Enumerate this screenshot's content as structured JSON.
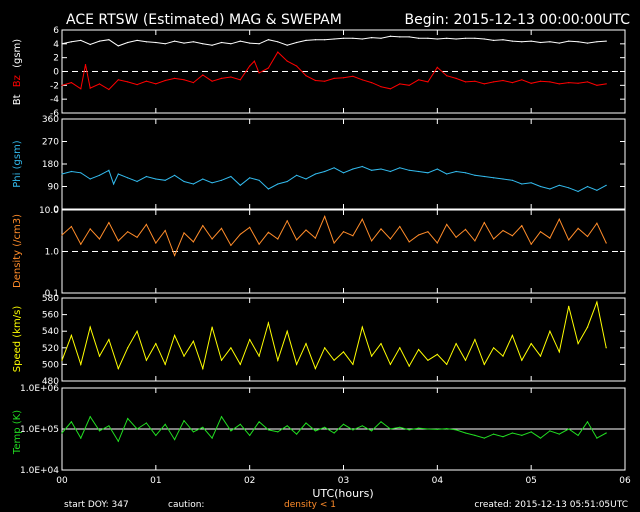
{
  "header": {
    "title": "ACE RTSW (Estimated) MAG & SWEPAM",
    "begin": "Begin: 2015-12-13 00:00:00UTC"
  },
  "footer": {
    "start_doy": "start DOY: 347",
    "caution": "caution:",
    "density_note": "density < 1",
    "created": "created: 2015-12-13 05:51:05UTC"
  },
  "colors": {
    "background": "#000000",
    "axes": "#ffffff",
    "bt": "#ffffff",
    "bz": "#ff0000",
    "phi": "#33bbee",
    "density": "#ff8c2a",
    "speed": "#ffff00",
    "temp": "#22dd22",
    "caution": "#ff8c2a"
  },
  "chart_data": [
    {
      "type": "line",
      "panel": "mag",
      "ylabel_parts": [
        "Bt",
        "Bz",
        "(gsm)"
      ],
      "ylim": [
        -6,
        6
      ],
      "yticks": [
        "6",
        "4",
        "2",
        "0",
        "-2",
        "-4",
        "-6"
      ],
      "ytick_values": [
        6,
        4,
        2,
        0,
        -2,
        -4,
        -6
      ],
      "reference_line": 0,
      "series": [
        {
          "key": "bt",
          "x": [
            0.0,
            0.1,
            0.2,
            0.3,
            0.4,
            0.5,
            0.6,
            0.7,
            0.8,
            0.9,
            1.0,
            1.1,
            1.2,
            1.3,
            1.4,
            1.5,
            1.6,
            1.7,
            1.8,
            1.9,
            2.0,
            2.1,
            2.2,
            2.3,
            2.4,
            2.5,
            2.6,
            2.7,
            2.8,
            2.9,
            3.0,
            3.1,
            3.2,
            3.3,
            3.4,
            3.5,
            3.6,
            3.7,
            3.8,
            3.9,
            4.0,
            4.1,
            4.2,
            4.3,
            4.4,
            4.5,
            4.6,
            4.7,
            4.8,
            4.9,
            5.0,
            5.1,
            5.2,
            5.3,
            5.4,
            5.5,
            5.6,
            5.7,
            5.8
          ],
          "values": [
            4.0,
            4.3,
            4.5,
            3.9,
            4.4,
            4.6,
            3.7,
            4.2,
            4.5,
            4.3,
            4.2,
            4.0,
            4.4,
            4.1,
            4.3,
            4.0,
            3.8,
            4.2,
            4.0,
            4.4,
            4.1,
            4.0,
            4.6,
            4.3,
            3.8,
            4.2,
            4.5,
            4.6,
            4.6,
            4.7,
            4.8,
            4.8,
            4.7,
            4.9,
            4.8,
            5.1,
            5.0,
            5.0,
            4.8,
            4.8,
            4.7,
            4.8,
            4.7,
            4.8,
            4.8,
            4.7,
            4.5,
            4.6,
            4.4,
            4.3,
            4.4,
            4.2,
            4.3,
            4.1,
            4.4,
            4.3,
            4.1,
            4.3,
            4.4
          ]
        },
        {
          "key": "bz",
          "x": [
            0.0,
            0.1,
            0.2,
            0.25,
            0.3,
            0.4,
            0.5,
            0.6,
            0.7,
            0.8,
            0.9,
            1.0,
            1.1,
            1.2,
            1.3,
            1.4,
            1.5,
            1.6,
            1.7,
            1.8,
            1.9,
            2.0,
            2.05,
            2.1,
            2.2,
            2.3,
            2.4,
            2.5,
            2.6,
            2.7,
            2.8,
            2.9,
            3.0,
            3.1,
            3.2,
            3.3,
            3.4,
            3.5,
            3.6,
            3.7,
            3.8,
            3.9,
            4.0,
            4.1,
            4.2,
            4.3,
            4.4,
            4.5,
            4.6,
            4.7,
            4.8,
            4.9,
            5.0,
            5.1,
            5.2,
            5.3,
            5.4,
            5.5,
            5.6,
            5.7,
            5.8
          ],
          "values": [
            -2.0,
            -1.6,
            -2.5,
            1.0,
            -2.4,
            -1.8,
            -2.6,
            -1.2,
            -1.5,
            -1.9,
            -1.4,
            -1.8,
            -1.3,
            -1.0,
            -1.2,
            -1.6,
            -0.5,
            -1.4,
            -1.0,
            -0.8,
            -1.2,
            0.8,
            1.5,
            -0.2,
            0.5,
            2.8,
            1.5,
            0.8,
            -0.6,
            -1.3,
            -1.4,
            -1.0,
            -0.9,
            -0.7,
            -1.2,
            -1.6,
            -2.2,
            -2.5,
            -1.8,
            -2.0,
            -1.2,
            -1.5,
            0.6,
            -0.6,
            -1.0,
            -1.5,
            -1.4,
            -1.8,
            -1.5,
            -1.3,
            -1.6,
            -1.2,
            -1.7,
            -1.4,
            -1.5,
            -1.8,
            -1.6,
            -1.7,
            -1.5,
            -2.0,
            -1.8
          ]
        }
      ]
    },
    {
      "type": "line",
      "panel": "phi",
      "ylabel": "Phi (gsm)",
      "ylim": [
        0,
        360
      ],
      "yticks": [
        "360",
        "270",
        "180",
        "90",
        "0"
      ],
      "ytick_values": [
        360,
        270,
        180,
        90,
        0
      ],
      "series": [
        {
          "key": "phi",
          "x": [
            0.0,
            0.1,
            0.2,
            0.3,
            0.4,
            0.5,
            0.55,
            0.6,
            0.7,
            0.8,
            0.9,
            1.0,
            1.1,
            1.2,
            1.3,
            1.4,
            1.5,
            1.6,
            1.7,
            1.8,
            1.9,
            2.0,
            2.1,
            2.2,
            2.3,
            2.4,
            2.5,
            2.6,
            2.7,
            2.8,
            2.9,
            3.0,
            3.1,
            3.2,
            3.3,
            3.4,
            3.5,
            3.6,
            3.7,
            3.8,
            3.9,
            4.0,
            4.1,
            4.2,
            4.3,
            4.4,
            4.5,
            4.6,
            4.7,
            4.8,
            4.9,
            5.0,
            5.1,
            5.2,
            5.3,
            5.4,
            5.5,
            5.6,
            5.7,
            5.8
          ],
          "values": [
            140,
            150,
            145,
            120,
            135,
            155,
            100,
            140,
            125,
            110,
            130,
            120,
            115,
            135,
            110,
            100,
            120,
            105,
            115,
            130,
            95,
            125,
            115,
            80,
            100,
            110,
            135,
            120,
            140,
            150,
            165,
            145,
            160,
            170,
            155,
            160,
            150,
            165,
            155,
            150,
            145,
            160,
            140,
            150,
            145,
            135,
            130,
            125,
            120,
            115,
            100,
            105,
            90,
            80,
            95,
            85,
            70,
            90,
            75,
            95
          ]
        }
      ]
    },
    {
      "type": "line",
      "panel": "density",
      "ylabel": "Density (/cm3)",
      "yscale": "log",
      "ylim": [
        0.1,
        10.0
      ],
      "yticks": [
        "10.0",
        "1.0",
        "0.1"
      ],
      "ytick_values": [
        10.0,
        1.0,
        0.1
      ],
      "reference_line": 1.0,
      "series": [
        {
          "key": "density",
          "x": [
            0.0,
            0.1,
            0.2,
            0.3,
            0.4,
            0.5,
            0.6,
            0.7,
            0.8,
            0.9,
            1.0,
            1.1,
            1.2,
            1.3,
            1.4,
            1.5,
            1.6,
            1.7,
            1.8,
            1.9,
            2.0,
            2.1,
            2.2,
            2.3,
            2.4,
            2.5,
            2.6,
            2.7,
            2.8,
            2.9,
            3.0,
            3.1,
            3.2,
            3.3,
            3.4,
            3.5,
            3.6,
            3.7,
            3.8,
            3.9,
            4.0,
            4.1,
            4.2,
            4.3,
            4.4,
            4.5,
            4.6,
            4.7,
            4.8,
            4.9,
            5.0,
            5.1,
            5.2,
            5.3,
            5.4,
            5.5,
            5.6,
            5.7,
            5.8
          ],
          "values": [
            2.5,
            4.0,
            1.5,
            3.5,
            2.0,
            5.0,
            1.8,
            3.0,
            2.2,
            4.5,
            1.6,
            3.2,
            0.8,
            2.8,
            1.7,
            4.2,
            2.0,
            3.6,
            1.4,
            2.6,
            3.8,
            1.5,
            2.9,
            2.0,
            5.5,
            1.9,
            3.3,
            2.1,
            7.0,
            1.6,
            3.0,
            2.4,
            6.0,
            1.8,
            3.5,
            2.0,
            4.0,
            1.7,
            2.5,
            3.0,
            1.6,
            4.5,
            2.2,
            3.4,
            1.8,
            5.0,
            2.0,
            3.2,
            2.4,
            4.2,
            1.5,
            3.0,
            2.1,
            6.0,
            1.9,
            3.6,
            2.3,
            4.8,
            1.6
          ]
        }
      ]
    },
    {
      "type": "line",
      "panel": "speed",
      "ylabel": "Speed (km/s)",
      "ylim": [
        480,
        580
      ],
      "yticks": [
        "580",
        "560",
        "540",
        "520",
        "500",
        "480"
      ],
      "ytick_values": [
        580,
        560,
        540,
        520,
        500,
        480
      ],
      "series": [
        {
          "key": "speed",
          "x": [
            0.0,
            0.1,
            0.2,
            0.3,
            0.4,
            0.5,
            0.6,
            0.7,
            0.8,
            0.9,
            1.0,
            1.1,
            1.2,
            1.3,
            1.4,
            1.5,
            1.6,
            1.7,
            1.8,
            1.9,
            2.0,
            2.1,
            2.2,
            2.3,
            2.4,
            2.5,
            2.6,
            2.7,
            2.8,
            2.9,
            3.0,
            3.1,
            3.2,
            3.3,
            3.4,
            3.5,
            3.6,
            3.7,
            3.8,
            3.9,
            4.0,
            4.1,
            4.2,
            4.3,
            4.4,
            4.5,
            4.6,
            4.7,
            4.8,
            4.9,
            5.0,
            5.1,
            5.2,
            5.3,
            5.4,
            5.5,
            5.6,
            5.7,
            5.8
          ],
          "values": [
            505,
            535,
            500,
            545,
            510,
            530,
            495,
            520,
            540,
            505,
            525,
            500,
            535,
            510,
            528,
            495,
            545,
            505,
            520,
            500,
            530,
            510,
            550,
            505,
            540,
            500,
            525,
            495,
            520,
            505,
            515,
            500,
            545,
            510,
            525,
            500,
            520,
            498,
            518,
            505,
            512,
            500,
            525,
            505,
            530,
            500,
            520,
            510,
            535,
            505,
            525,
            510,
            540,
            515,
            570,
            525,
            545,
            575,
            520
          ]
        }
      ]
    },
    {
      "type": "line",
      "panel": "temp",
      "ylabel": "Temp (K)",
      "yscale": "log",
      "ylim": [
        10000,
        1000000
      ],
      "yticks": [
        "1.0E+06",
        "1.0E+05",
        "1.0E+04"
      ],
      "ytick_values": [
        1000000,
        100000,
        10000
      ],
      "reference_line": 100000,
      "series": [
        {
          "key": "temp",
          "x": [
            0.0,
            0.1,
            0.2,
            0.3,
            0.4,
            0.5,
            0.6,
            0.7,
            0.8,
            0.9,
            1.0,
            1.1,
            1.2,
            1.3,
            1.4,
            1.5,
            1.6,
            1.7,
            1.8,
            1.9,
            2.0,
            2.1,
            2.2,
            2.3,
            2.4,
            2.5,
            2.6,
            2.7,
            2.8,
            2.9,
            3.0,
            3.1,
            3.2,
            3.3,
            3.4,
            3.5,
            3.6,
            3.7,
            3.8,
            3.9,
            4.0,
            4.1,
            4.2,
            4.3,
            4.4,
            4.5,
            4.6,
            4.7,
            4.8,
            4.9,
            5.0,
            5.1,
            5.2,
            5.3,
            5.4,
            5.5,
            5.6,
            5.7,
            5.8
          ],
          "values": [
            80000,
            150000,
            60000,
            200000,
            90000,
            120000,
            50000,
            180000,
            100000,
            140000,
            70000,
            130000,
            55000,
            160000,
            85000,
            110000,
            60000,
            200000,
            90000,
            130000,
            70000,
            150000,
            95000,
            85000,
            120000,
            75000,
            140000,
            90000,
            110000,
            80000,
            130000,
            95000,
            120000,
            90000,
            150000,
            100000,
            110000,
            95000,
            105000,
            100000,
            98000,
            102000,
            95000,
            80000,
            70000,
            60000,
            75000,
            65000,
            80000,
            70000,
            85000,
            60000,
            90000,
            75000,
            100000,
            70000,
            150000,
            60000,
            80000
          ]
        }
      ]
    }
  ],
  "x_axis": {
    "xlabel": "UTC(hours)",
    "xlim": [
      0,
      6
    ],
    "xticks": [
      "00",
      "01",
      "02",
      "03",
      "04",
      "05",
      "06"
    ],
    "xtick_values": [
      0,
      1,
      2,
      3,
      4,
      5,
      6
    ]
  }
}
